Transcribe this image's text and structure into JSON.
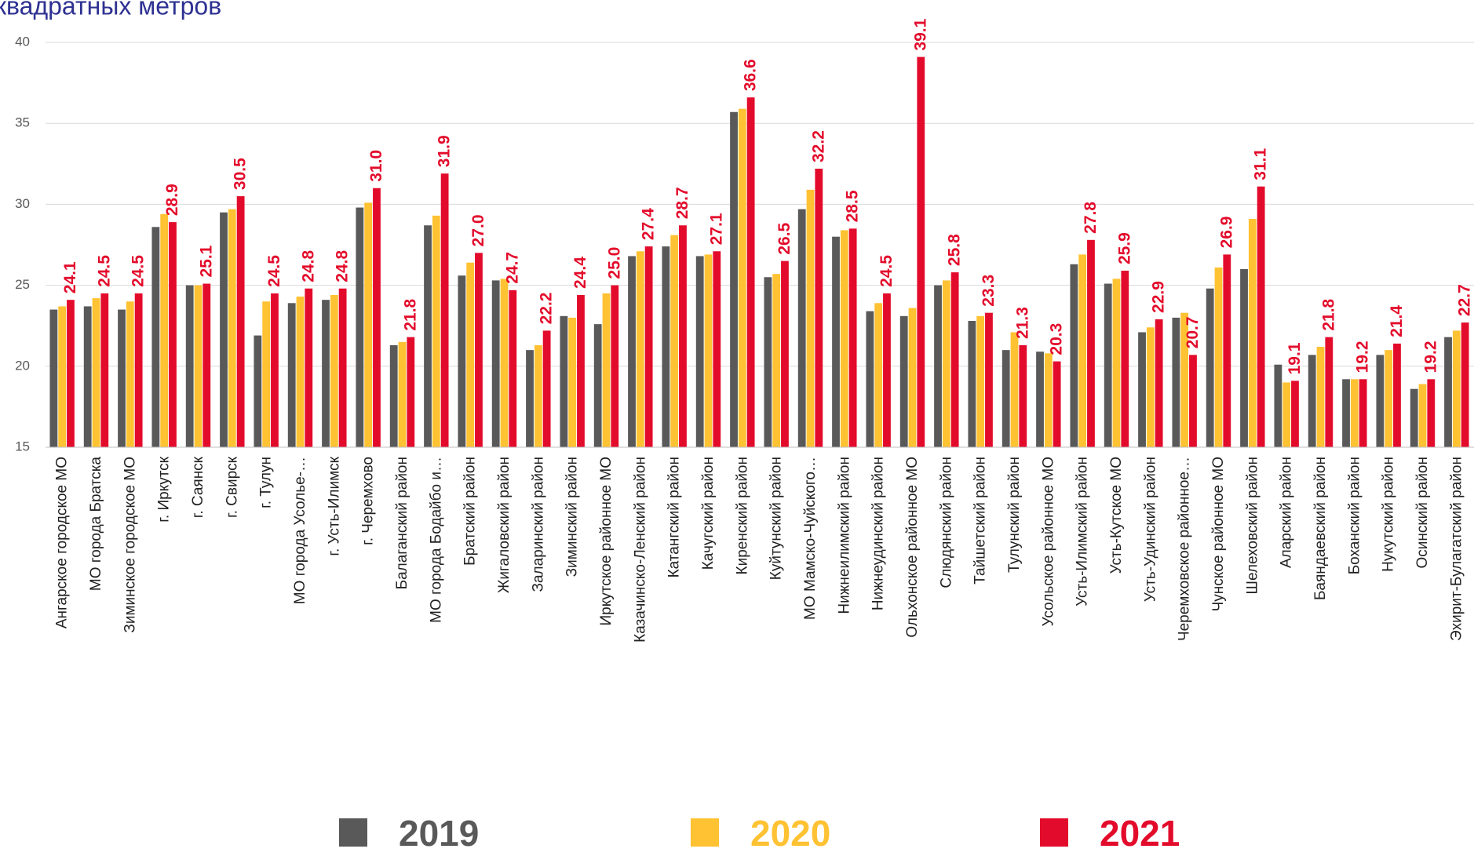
{
  "chart_data": {
    "type": "bar",
    "title": "квадратных метров",
    "categories": [
      "Ангарское городское МО",
      "МО города Братска",
      "Зиминское городское МО",
      "г. Иркутск",
      "г. Саянск",
      "г. Свирск",
      "г. Тулун",
      "МО города Усолье-…",
      "г. Усть-Илимск",
      "г. Черемхово",
      "Балаганский район",
      "МО города Бодайбо и…",
      "Братский район",
      "Жигаловский район",
      "Заларинский район",
      "Зиминский район",
      "Иркутское районное МО",
      "Казачинско-Ленский район",
      "Катангский район",
      "Качугский район",
      "Киренский район",
      "Куйтунский район",
      "МО Мамско-Чуйского…",
      "Нижнеилимский район",
      "Нижнеудинский район",
      "Ольхонское районное МО",
      "Слюдянский район",
      "Тайшетский район",
      "Тулунский район",
      "Усольское районное МО",
      "Усть-Илимский район",
      "Усть-Кутское МО",
      "Усть-Удинский район",
      "Черемховское районное…",
      "Чунское районное МО",
      "Шелеховский район",
      "Аларский район",
      "Баяндаевский район",
      "Боханский район",
      "Нукутский район",
      "Осинский район",
      "Эхирит-Булагатский район"
    ],
    "series": [
      {
        "name": "2019",
        "color": "#595959",
        "values": [
          23.5,
          23.7,
          23.5,
          28.6,
          25.0,
          29.5,
          21.9,
          23.9,
          24.1,
          29.8,
          21.3,
          28.7,
          25.6,
          25.3,
          21.0,
          23.1,
          22.6,
          26.8,
          27.4,
          26.8,
          35.7,
          25.5,
          29.7,
          28.0,
          23.4,
          23.1,
          25.0,
          22.8,
          21.0,
          20.9,
          26.3,
          25.1,
          22.1,
          23.0,
          24.8,
          26.0,
          20.1,
          20.7,
          19.2,
          20.7,
          18.6,
          21.8
        ]
      },
      {
        "name": "2020",
        "color": "#ffc233",
        "values": [
          23.7,
          24.2,
          24.0,
          29.4,
          25.0,
          29.7,
          24.0,
          24.3,
          24.4,
          30.1,
          21.5,
          29.3,
          26.4,
          25.4,
          21.3,
          23.0,
          24.5,
          27.1,
          28.1,
          26.9,
          35.9,
          25.7,
          30.9,
          28.4,
          23.9,
          23.6,
          25.3,
          23.1,
          22.1,
          20.8,
          26.9,
          25.4,
          22.4,
          23.3,
          26.1,
          29.1,
          19.0,
          21.2,
          19.2,
          21.0,
          18.9,
          22.2
        ]
      },
      {
        "name": "2021",
        "color": "#e30b2b",
        "values": [
          24.1,
          24.5,
          24.5,
          28.9,
          25.1,
          30.5,
          24.5,
          24.8,
          24.8,
          31.0,
          21.8,
          31.9,
          27.0,
          24.7,
          22.2,
          24.4,
          25.0,
          27.4,
          28.7,
          27.1,
          36.6,
          26.5,
          32.2,
          28.5,
          24.5,
          39.1,
          25.8,
          23.3,
          21.3,
          20.3,
          27.8,
          25.9,
          22.9,
          20.7,
          26.9,
          31.1,
          19.1,
          21.8,
          19.2,
          21.4,
          19.2,
          22.7
        ],
        "value_labels": [
          "24.1",
          "24.5",
          "24.5",
          "28.9",
          "25.1",
          "30.5",
          "24.5",
          "24.8",
          "24.8",
          "31.0",
          "21.8",
          "31.9",
          "27.0",
          "24.7",
          "22.2",
          "24.4",
          "25.0",
          "27.4",
          "28.7",
          "27.1",
          "36.6",
          "26.5",
          "32.2",
          "28.5",
          "24.5",
          "39.1",
          "25.8",
          "23.3",
          "21.3",
          "20.3",
          "27.8",
          "25.9",
          "22.9",
          "20.7",
          "26.9",
          "31.1",
          "19.1",
          "21.8",
          "19.2",
          "21.4",
          "19.2",
          "22.7"
        ]
      }
    ],
    "ylim": [
      15,
      40
    ],
    "yticks": [
      15,
      20,
      25,
      30,
      35,
      40
    ],
    "grid": true
  }
}
